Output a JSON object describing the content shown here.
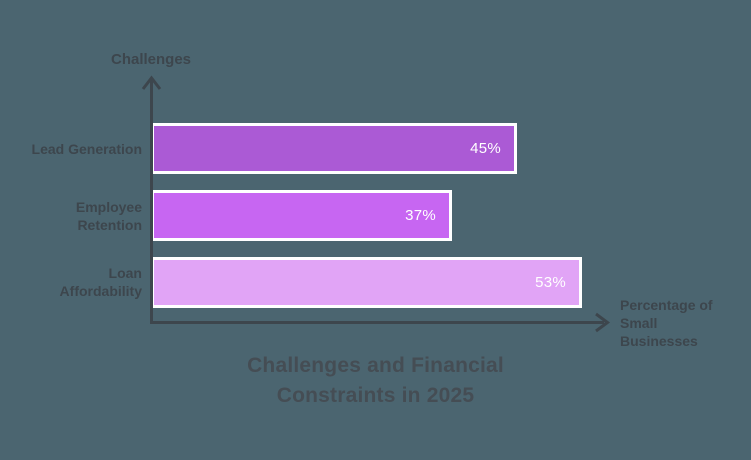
{
  "background_color": "#4b6570",
  "text_color": "#3d464d",
  "chart_data": {
    "type": "bar",
    "orientation": "horizontal",
    "title": "Challenges and Financial Constraints in 2025",
    "title_lines": [
      "Challenges and Financial",
      "Constraints in 2025"
    ],
    "ylabel": "Challenges",
    "xlabel": "Percentage of Small Businesses",
    "xlabel_lines": [
      "Percentage of",
      "Small",
      "Businesses"
    ],
    "categories": [
      "Lead Generation",
      "Employee Retention",
      "Loan Affordability"
    ],
    "category_label_lines": [
      [
        "Lead Generation"
      ],
      [
        "Employee",
        "Retention"
      ],
      [
        "Loan",
        "Affordability"
      ]
    ],
    "values": [
      45,
      37,
      53
    ],
    "value_labels": [
      "45%",
      "37%",
      "53%"
    ],
    "bar_colors": [
      "#ab5ad5",
      "#c766f2",
      "#e1a4f6"
    ],
    "bar_border_color": "#ffffff",
    "axis_color": "#3d464d",
    "value_label_color": "#ffffff",
    "grid": false,
    "legend": false,
    "axis_ticks": false
  }
}
